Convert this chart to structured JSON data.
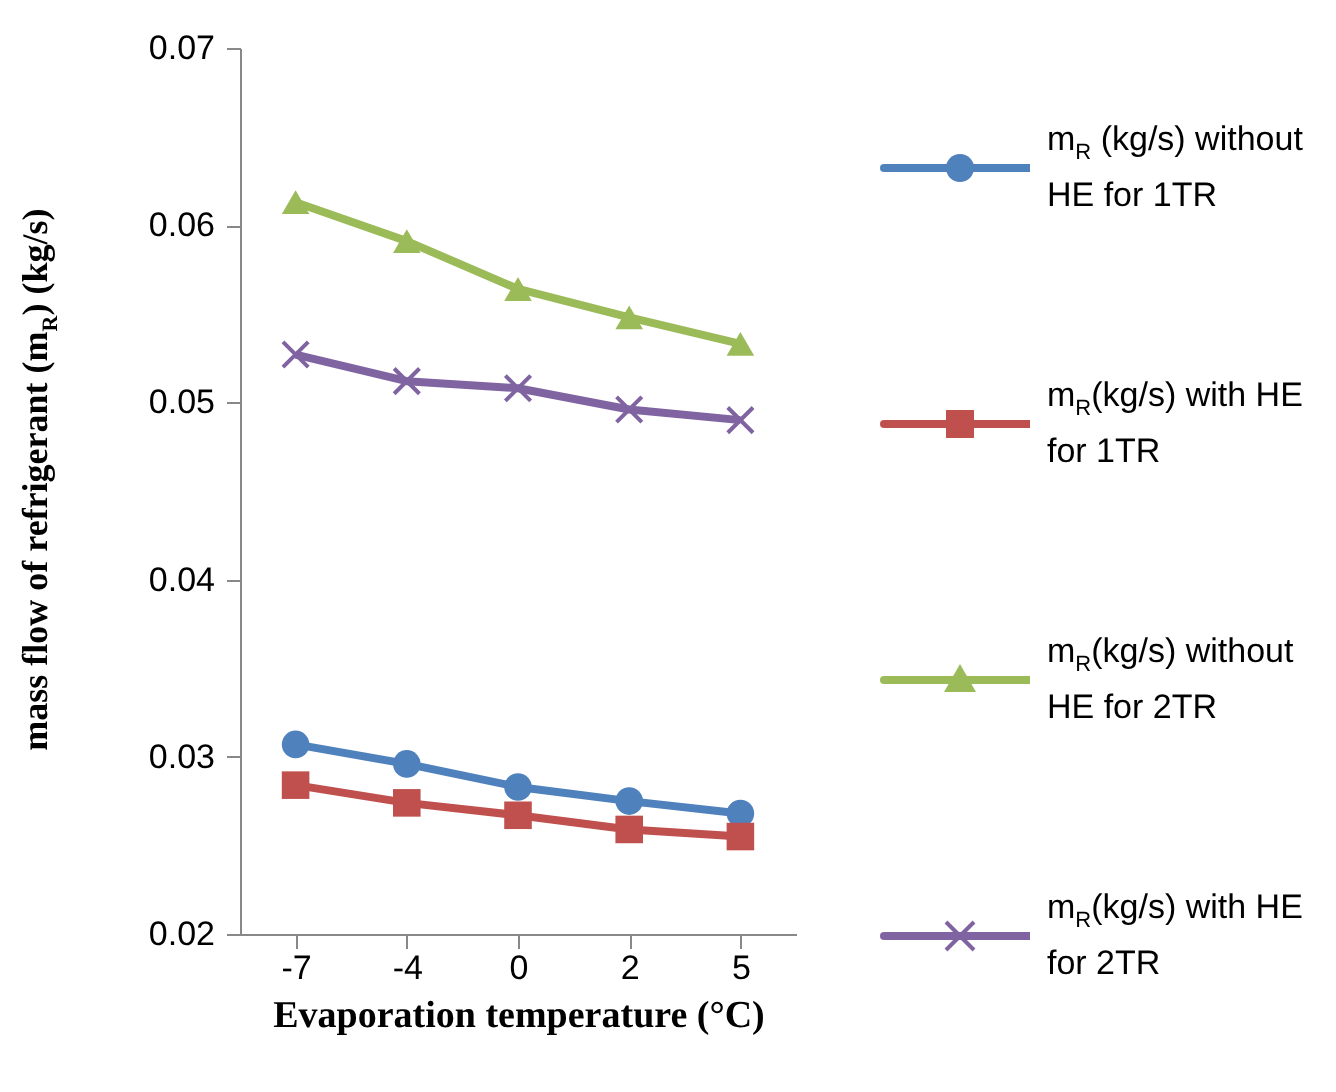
{
  "chart_data": {
    "type": "line",
    "xlabel": "Evaporation temperature (°C)",
    "ylabel": "mass flow of refrigerant (m$_{R}$) (kg/s)",
    "categories": [
      "-7",
      "-4",
      "0",
      "2",
      "5"
    ],
    "ylim": [
      0.02,
      0.07
    ],
    "yticks": [
      0.02,
      0.03,
      0.04,
      0.05,
      0.06,
      0.07
    ],
    "grid": false,
    "legend": "right",
    "series": [
      {
        "name": "m$_{R}$ (kg/s) without HE for 1TR",
        "color": "#4f81bd",
        "marker": "circle",
        "values": [
          0.0307,
          0.0296,
          0.0283,
          0.0275,
          0.0268
        ]
      },
      {
        "name": "m$_{R}$(kg/s) with HE for 1TR",
        "color": "#c0504d",
        "marker": "square",
        "values": [
          0.0284,
          0.0274,
          0.0267,
          0.0259,
          0.0255
        ]
      },
      {
        "name": "m$_{R}$(kg/s) without HE for 2TR",
        "color": "#9bbb59",
        "marker": "triangle",
        "values": [
          0.0613,
          0.0591,
          0.0564,
          0.0548,
          0.0533
        ]
      },
      {
        "name": "m$_{R}$(kg/s) with HE for 2TR",
        "color": "#8064a2",
        "marker": "cross",
        "values": [
          0.0527,
          0.0512,
          0.0508,
          0.0496,
          0.049
        ]
      }
    ]
  }
}
